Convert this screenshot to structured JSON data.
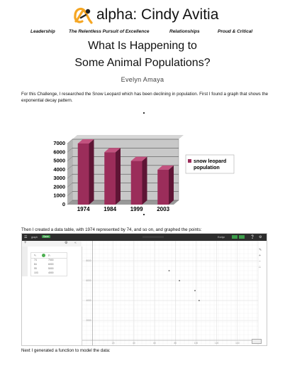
{
  "header": {
    "logo_text": "alpha: Cindy Avitia",
    "taglines": [
      "Leadership",
      "The Relentless Pursuit of Excellence",
      "Relationships",
      "Proud & Critical"
    ],
    "colors": {
      "logo_orange": "#f5a623",
      "logo_dark": "#222222"
    }
  },
  "doc": {
    "title_line1": "What Is Happening to",
    "title_line2": "Some Animal Populations?",
    "author": "Evelyn Amaya",
    "intro": "For this Challenge, I researched the Snow Leopard  which has been declining in population. First I found a graph that shows the exponential decay pattern.",
    "table_text": "Then I created a data table, with 1974 represented by 74, and so on, and graphed the points:",
    "function_text": "Next I generated a function to model the data:"
  },
  "chart_data": {
    "type": "bar",
    "categories": [
      "1974",
      "1984",
      "1999",
      "2003"
    ],
    "series": [
      {
        "name": "snow leopard population",
        "values": [
          7000,
          6000,
          5000,
          4000
        ]
      }
    ],
    "yticks": [
      "0",
      "1000",
      "2000",
      "3000",
      "4000",
      "5000",
      "6000",
      "7000"
    ],
    "ylim": [
      0,
      7000
    ],
    "legend": "right",
    "grid": true,
    "colors": {
      "bar": "#9b2d5a",
      "bar_dark": "#5e1535",
      "wall": "#c8c8c8",
      "floor": "#9a9a9a"
    }
  },
  "calculator": {
    "title": "graph",
    "save_label": "Save",
    "account_label": "Evelyn",
    "share_label": "Share",
    "table": {
      "headers": [
        "x₁",
        "y₁"
      ],
      "rows": [
        [
          "74",
          "7000"
        ],
        [
          "84",
          "6000"
        ],
        [
          "99",
          "5000"
        ],
        [
          "103",
          "4000"
        ]
      ]
    },
    "points": [
      [
        74,
        7000
      ],
      [
        84,
        6000
      ],
      [
        99,
        5000
      ],
      [
        103,
        4000
      ]
    ],
    "x_range": [
      -10,
      160
    ],
    "y_range": [
      -500,
      10000
    ],
    "y_labels": [
      "8000",
      "6000",
      "4000",
      "2000"
    ],
    "x_labels": [
      "20",
      "40",
      "60",
      "80",
      "100",
      "120",
      "140"
    ]
  }
}
